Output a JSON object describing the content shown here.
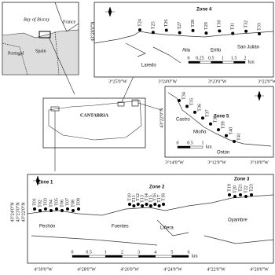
{
  "inset": {
    "sea": "Bay of Biscay",
    "france": "France",
    "portugal": "Portugal",
    "spain": "Spain"
  },
  "cantabria": "CANTABRIA",
  "zone4": {
    "title": "Zone 4",
    "stations": [
      "T24",
      "T25",
      "T26",
      "T27",
      "T28",
      "T29",
      "T30",
      "T31",
      "T32",
      "T33"
    ],
    "places": [
      "Laredo",
      "Aila",
      "Erillo",
      "San Julián"
    ],
    "scale": [
      "0",
      "0.25",
      "0.5",
      "1",
      "1.5",
      "2"
    ],
    "unit": "km",
    "lon": [
      "3°25'0\"W",
      "3°24'0\"W",
      "3°23'0\"W",
      "3°22'0\"W"
    ],
    "lat": [
      "43°28'0\"N"
    ]
  },
  "zone5": {
    "title": "Zone 5",
    "stations": [
      "T34",
      "T35",
      "T36",
      "T37",
      "T38",
      "T39",
      "T40",
      "T41"
    ],
    "places": [
      "Castro",
      "Mioño",
      "Ontón"
    ],
    "scale": [
      "0",
      "0.5",
      "1"
    ],
    "unit": "km",
    "lon": [
      "3°14'0\"W",
      "3°12'0\"W",
      "3°10'0\"W"
    ],
    "lat": [
      "43°22'0\"N"
    ]
  },
  "west": {
    "zones": [
      {
        "title": "Zone 1",
        "stations": [
          "T01",
          "T02",
          "T03",
          "T04",
          "T05",
          "T06",
          "T07",
          "T08",
          "T09"
        ]
      },
      {
        "title": "Zone 2",
        "stations": [
          "T10",
          "T11",
          "T12",
          "T13",
          "T14",
          "T15",
          "T16",
          "T17",
          "T18"
        ]
      },
      {
        "title": "Zone 3",
        "stations": [
          "T19",
          "T20",
          "T21",
          "T22",
          "T23"
        ]
      }
    ],
    "places": [
      "Pechón",
      "Fuentes",
      "Liñera",
      "Oyambre"
    ],
    "scale": [
      "0",
      "0.5",
      "1",
      "2",
      "3",
      "4",
      "5",
      "6"
    ],
    "unit": "km",
    "lon": [
      "4°30'0\"W",
      "4°28'0\"W",
      "4°26'0\"W",
      "4°24'0\"W",
      "4°22'0\"W",
      "4°20'0\"W"
    ],
    "lat": [
      "43°24'0\"N",
      "43°23'0\"N",
      "43°22'0\"N"
    ]
  }
}
